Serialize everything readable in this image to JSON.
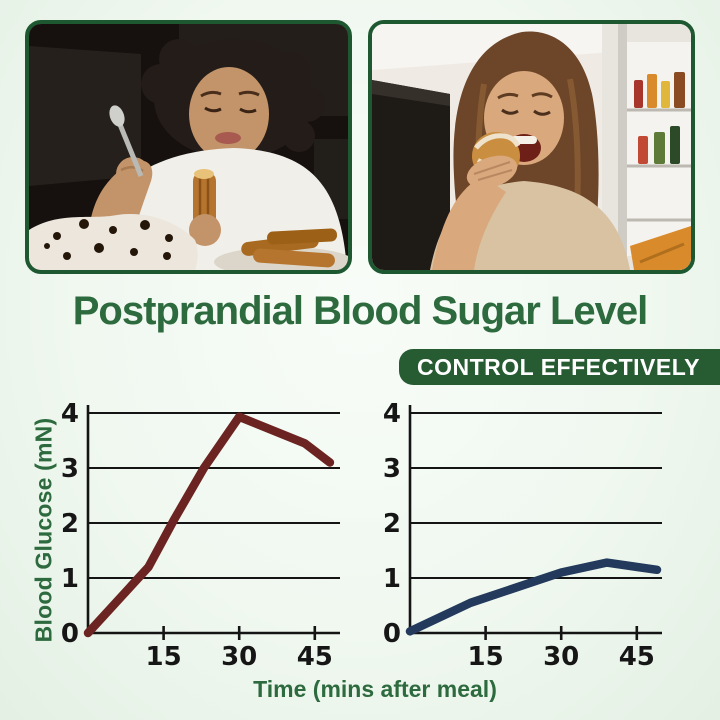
{
  "title": "Postprandial Blood Sugar Level",
  "badge": {
    "label": "CONTROL EFFECTIVELY"
  },
  "photos": [
    {
      "id": "photo-night-overeating",
      "description": "Woman in a white t-shirt eating cake and churros at night"
    },
    {
      "id": "photo-fridge-donut",
      "description": "Woman biting a glazed donut beside an open fridge"
    }
  ],
  "axes": {
    "ylabel": "Blood Glucose (mN)",
    "xlabel": "Time (mins after meal)"
  },
  "colors": {
    "title_green": "#2d6a3e",
    "badge_green": "#275c33",
    "photo_border": "#1d5831",
    "line_uncontrolled": "#6b2421",
    "line_controlled": "#233a5c",
    "grid": "#141414",
    "background_mint": "#eef7ee"
  },
  "chart_data": [
    {
      "type": "line",
      "name": "uncontrolled-blood-sugar",
      "color": "#6b2421",
      "x": [
        0,
        12,
        17,
        23,
        30,
        43,
        48
      ],
      "y": [
        0,
        1.2,
        2.05,
        3.0,
        3.93,
        3.45,
        3.1
      ],
      "xlim": [
        0,
        50
      ],
      "ylim": [
        0,
        4
      ],
      "xticks": [
        15,
        30,
        45
      ],
      "yticks": [
        0,
        1,
        2,
        3,
        4
      ],
      "xlabel": "Time (mins after meal)",
      "ylabel": "Blood Glucose (mN)",
      "grid": true,
      "legend": "none"
    },
    {
      "type": "line",
      "name": "controlled-blood-sugar",
      "color": "#233a5c",
      "x": [
        0,
        12,
        30,
        39,
        49
      ],
      "y": [
        0.03,
        0.55,
        1.1,
        1.28,
        1.15
      ],
      "xlim": [
        0,
        50
      ],
      "ylim": [
        0,
        4
      ],
      "xticks": [
        15,
        30,
        45
      ],
      "yticks": [
        0,
        1,
        2,
        3,
        4
      ],
      "xlabel": "Time (mins after meal)",
      "ylabel": "Blood Glucose (mN)",
      "grid": true,
      "legend": "none"
    }
  ]
}
